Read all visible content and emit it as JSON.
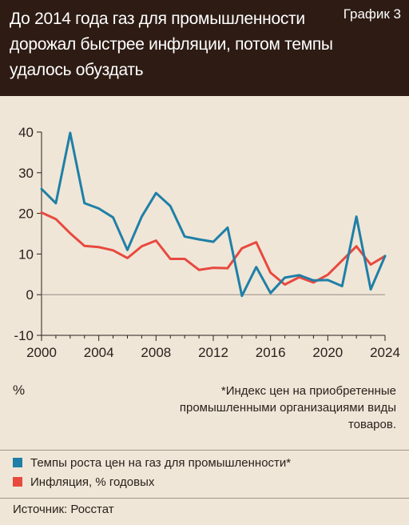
{
  "header": {
    "title": "До 2014 года газ для промышленности дорожал быстрее инфляции, потом темпы удалось обуздать",
    "chart_number": "График 3"
  },
  "chart_data": {
    "type": "line",
    "title": "До 2014 года газ для промышленности дорожал быстрее инфляции, потом темпы удалось обуздать",
    "ylabel": "%",
    "xlim": [
      2000,
      2024
    ],
    "ylim": [
      -10,
      40
    ],
    "x_ticks": [
      "2000",
      "2004",
      "2008",
      "2012",
      "2016",
      "2020",
      "2024"
    ],
    "y_ticks": [
      "40",
      "30",
      "20",
      "10",
      "0",
      "-10"
    ],
    "grid": false,
    "x": [
      2000,
      2001,
      2002,
      2003,
      2004,
      2005,
      2006,
      2007,
      2008,
      2009,
      2010,
      2011,
      2012,
      2013,
      2014,
      2015,
      2016,
      2017,
      2018,
      2019,
      2020,
      2021,
      2022,
      2023,
      2024
    ],
    "series": [
      {
        "name": "Темпы роста цен на газ для промышленности*",
        "color": "#1f7fa7",
        "values": [
          26,
          22.5,
          39.8,
          22.5,
          21.2,
          19,
          11,
          19.2,
          25,
          21.8,
          14.3,
          13.6,
          13,
          16.5,
          -0.3,
          6.8,
          0.4,
          4.2,
          4.8,
          3.5,
          3.6,
          2.1,
          19.2,
          1.3,
          9.5
        ]
      },
      {
        "name": "Инфляция, % годовых",
        "color": "#e8493f",
        "values": [
          20.2,
          18.6,
          15.1,
          12,
          11.7,
          10.9,
          9,
          11.9,
          13.3,
          8.8,
          8.8,
          6.1,
          6.6,
          6.5,
          11.4,
          12.9,
          5.4,
          2.5,
          4.3,
          3,
          4.9,
          8.4,
          11.9,
          7.4,
          9.5
        ]
      }
    ]
  },
  "footnote": "*Индекс цен на приобретенные промышленными организациями виды товаров.",
  "legend": {
    "items": [
      {
        "label": "Темпы роста цен на газ для промышленности*",
        "color": "#1f7fa7"
      },
      {
        "label": "Инфляция, % годовых",
        "color": "#e8493f"
      }
    ]
  },
  "source": "Источник: Росстат"
}
